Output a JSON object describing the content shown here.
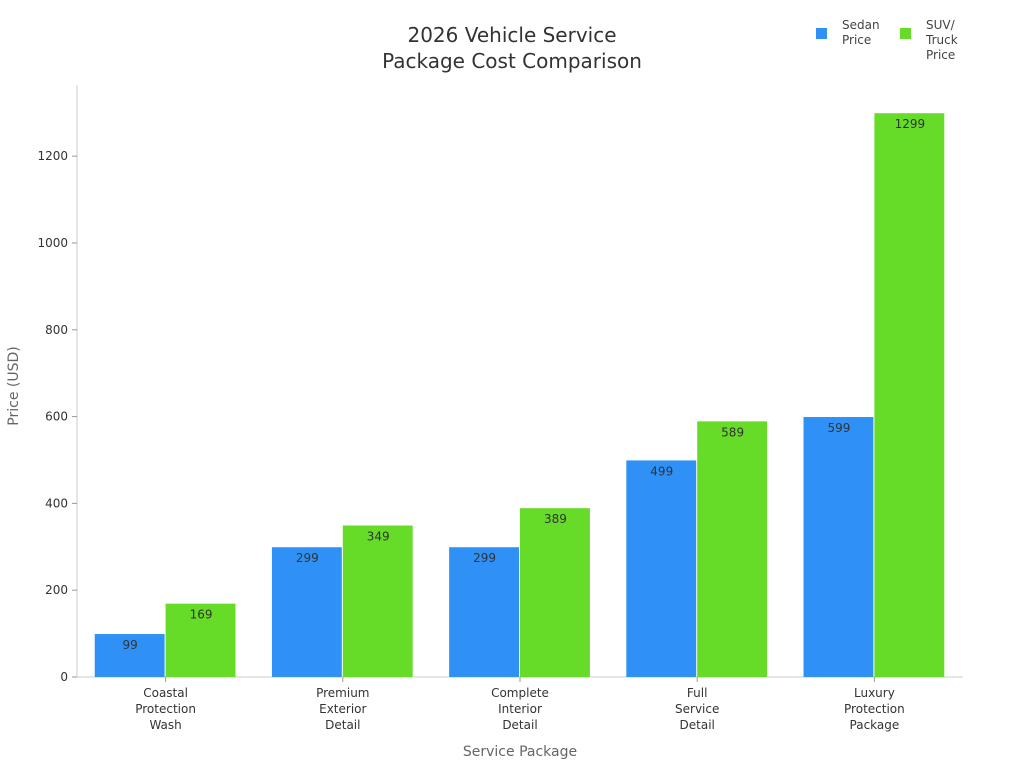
{
  "chart_data": {
    "type": "bar",
    "title": "2026 Vehicle Service\nPackage Cost Comparison",
    "xlabel": "Service Package",
    "ylabel": "Price (USD)",
    "categories": [
      "Coastal\nProtection\nWash",
      "Premium\nExterior\nDetail",
      "Complete\nInterior\nDetail",
      "Full\nService\nDetail",
      "Luxury\nProtection\nPackage"
    ],
    "series": [
      {
        "name": "Sedan\nPrice",
        "values": [
          99,
          299,
          299,
          499,
          599
        ],
        "color": "#2f91f6"
      },
      {
        "name": "SUV/\nTruck\nPrice",
        "values": [
          169,
          349,
          389,
          589,
          1299
        ],
        "color": "#66db28"
      }
    ],
    "ylim": [
      0,
      1364
    ],
    "yticks": [
      0,
      200,
      400,
      600,
      800,
      1000,
      1200
    ],
    "grid": false,
    "legend": "top-right",
    "data_labels": true
  }
}
